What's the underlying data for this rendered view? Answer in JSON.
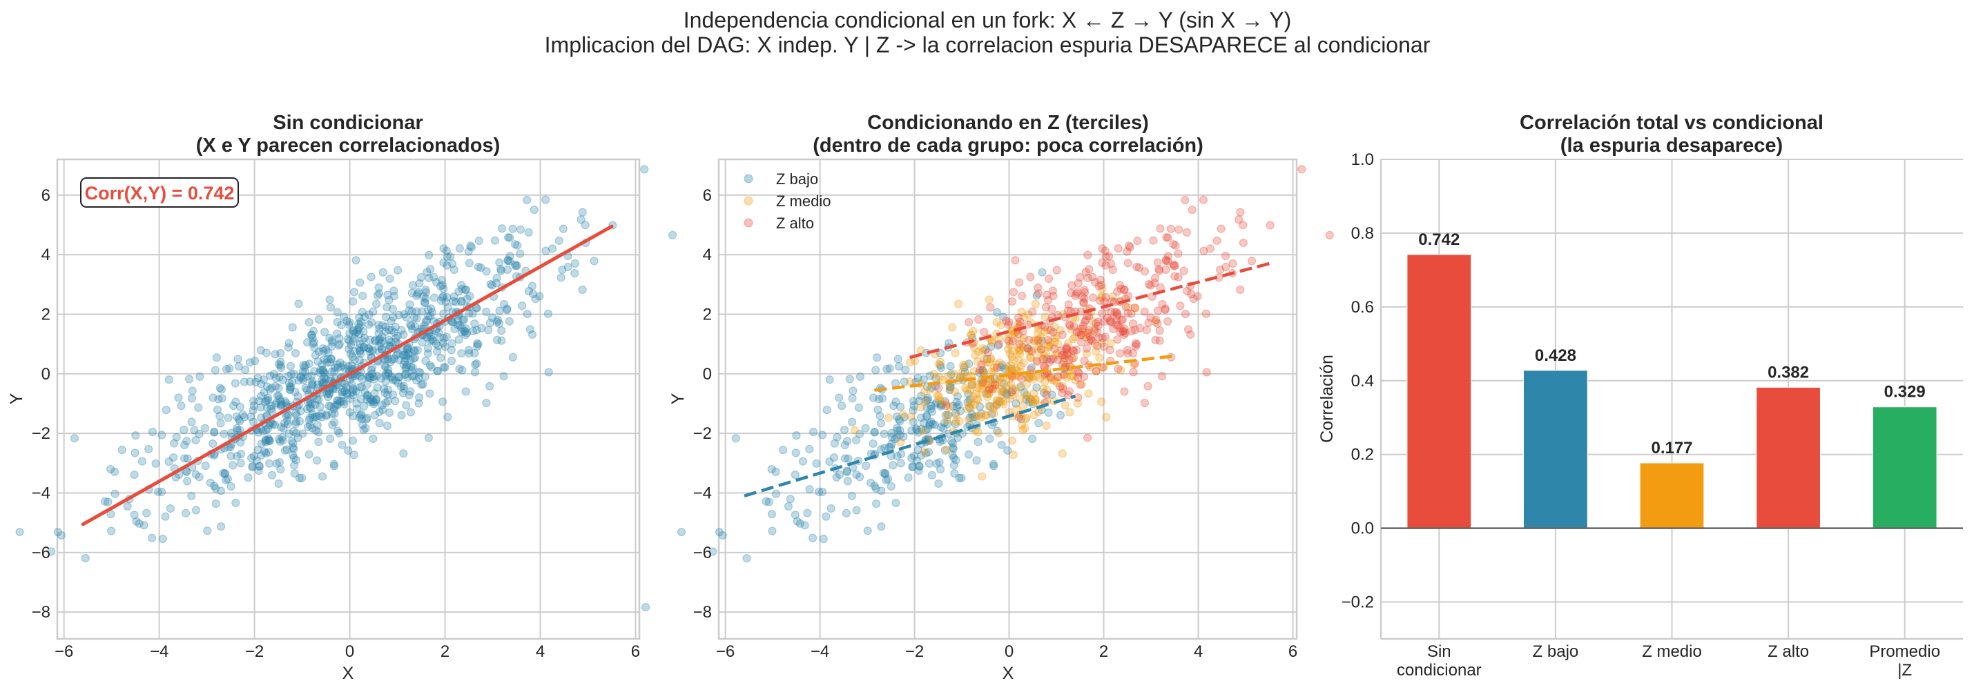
{
  "figure": {
    "suptitle_line1": "Independencia condicional en un fork: X ← Z → Y (sin X → Y)",
    "suptitle_line2": "Implicacion del DAG: X indep. Y | Z  ->  la correlacion espuria DESAPARECE al condicionar"
  },
  "chart_data": [
    {
      "type": "scatter",
      "title_line1": "Sin condicionar",
      "title_line2": "(X e Y parecen correlacionados)",
      "xlabel": "X",
      "ylabel": "Y",
      "xlim": [
        -6.14,
        6.08
      ],
      "ylim": [
        -8.9,
        7.2
      ],
      "xticks": [
        -6,
        -4,
        -2,
        0,
        2,
        4,
        6
      ],
      "yticks": [
        -8,
        -6,
        -4,
        -2,
        0,
        2,
        4,
        6
      ],
      "grid": true,
      "annotation": "Corr(X,Y) = 0.742",
      "annotation_color": "#E74C3C",
      "point_color": "#2E86AB",
      "fit_line": {
        "color": "#E74C3C",
        "style": "solid",
        "x": [
          -5.6,
          5.5
        ],
        "y": [
          -5.05,
          4.95
        ]
      }
    },
    {
      "type": "scatter",
      "title_line1": "Condicionando en Z (terciles)",
      "title_line2": "(dentro de cada grupo: poca correlación)",
      "xlabel": "X",
      "ylabel": "Y",
      "xlim": [
        -6.14,
        6.08
      ],
      "ylim": [
        -8.9,
        7.2
      ],
      "xticks": [
        -6,
        -4,
        -2,
        0,
        2,
        4,
        6
      ],
      "yticks": [
        -8,
        -6,
        -4,
        -2,
        0,
        2,
        4,
        6
      ],
      "grid": true,
      "legend_position": "upper-left",
      "series": [
        {
          "name": "Z bajo",
          "color": "#2E86AB",
          "fit_line": {
            "style": "dashed",
            "x": [
              -5.6,
              1.4
            ],
            "y": [
              -4.1,
              -0.75
            ]
          }
        },
        {
          "name": "Z medio",
          "color": "#F39C12",
          "fit_line": {
            "style": "dashed",
            "x": [
              -2.85,
              3.5
            ],
            "y": [
              -0.55,
              0.6
            ]
          }
        },
        {
          "name": "Z alto",
          "color": "#E74C3C",
          "fit_line": {
            "style": "dashed",
            "x": [
              -2.1,
              5.5
            ],
            "y": [
              0.55,
              3.7
            ]
          }
        }
      ]
    },
    {
      "type": "bar",
      "title_line1": "Correlación total vs condicional",
      "title_line2": "(la espuria desaparece)",
      "xlabel": "",
      "ylabel": "Correlación",
      "categories": [
        [
          "Sin",
          "condicionar"
        ],
        [
          "Z bajo"
        ],
        [
          "Z medio"
        ],
        [
          "Z alto"
        ],
        [
          "Promedio",
          "|Z"
        ]
      ],
      "values": [
        0.742,
        0.428,
        0.177,
        0.382,
        0.329
      ],
      "value_labels": [
        "0.742",
        "0.428",
        "0.177",
        "0.382",
        "0.329"
      ],
      "colors": [
        "#E74C3C",
        "#2E86AB",
        "#F39C12",
        "#E74C3C",
        "#27AE60"
      ],
      "ylim": [
        -0.3,
        1.0
      ],
      "yticks": [
        -0.2,
        0.0,
        0.2,
        0.4,
        0.6,
        0.8,
        1.0
      ],
      "ytick_labels": [
        "−0.2",
        "0.0",
        "0.2",
        "0.4",
        "0.6",
        "0.8",
        "1.0"
      ],
      "zero_line": true,
      "grid": true
    }
  ]
}
